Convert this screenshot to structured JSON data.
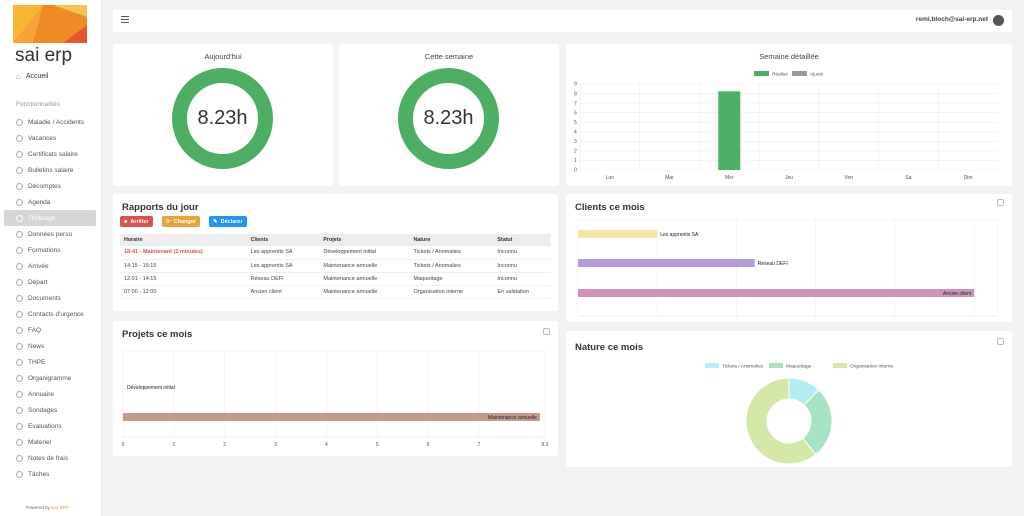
{
  "brand": {
    "name": "sai erp",
    "powered_prefix": "Powered by",
    "powered_brand": "SAI ERP",
    "logo_colors": [
      "#f7b733",
      "#f08a24",
      "#e4572e"
    ]
  },
  "sidebar": {
    "home": "Accueil",
    "section": "Fonctionnalités",
    "items": [
      {
        "label": "Maladie / Accidents",
        "icon": "clock-icon"
      },
      {
        "label": "Vacances",
        "icon": "clock-icon"
      },
      {
        "label": "Certificats salaire",
        "icon": "clock-icon"
      },
      {
        "label": "Bulletins salaire",
        "icon": "clock-icon"
      },
      {
        "label": "Décomptes",
        "icon": "clock-icon"
      },
      {
        "label": "Agenda",
        "icon": "clock-icon"
      },
      {
        "label": "Timbrage",
        "icon": "clock-icon",
        "active": true
      },
      {
        "label": "Données perso",
        "icon": "clock-icon"
      },
      {
        "label": "Formations",
        "icon": "clock-icon"
      },
      {
        "label": "Arrivée",
        "icon": "clock-icon"
      },
      {
        "label": "Départ",
        "icon": "clock-icon"
      },
      {
        "label": "Documents",
        "icon": "clock-icon"
      },
      {
        "label": "Contacts d'urgence",
        "icon": "clock-icon"
      },
      {
        "label": "FAQ",
        "icon": "clock-icon"
      },
      {
        "label": "News",
        "icon": "clock-icon"
      },
      {
        "label": "THPE",
        "icon": "clock-icon"
      },
      {
        "label": "Organigramme",
        "icon": "clock-icon"
      },
      {
        "label": "Annuaire",
        "icon": "clock-icon"
      },
      {
        "label": "Sondages",
        "icon": "clock-icon"
      },
      {
        "label": "Evaluations",
        "icon": "clock-icon"
      },
      {
        "label": "Materiel",
        "icon": "clock-icon"
      },
      {
        "label": "Notes de frais",
        "icon": "clock-icon"
      },
      {
        "label": "Tâches",
        "icon": "clock-icon"
      }
    ]
  },
  "topbar": {
    "user_email": "remi.bloch@sai-erp.net"
  },
  "today": {
    "title": "Aujourd'hui",
    "value": "8.23h"
  },
  "week": {
    "title": "Cette semaine",
    "value": "8.23h"
  },
  "colors": {
    "green": "#4caf63",
    "red": "#d9534f",
    "orange": "#e8a33b",
    "blue": "#2196f3"
  },
  "week_detail": {
    "title": "Semaine détaillée",
    "chart_data": {
      "type": "bar",
      "categories": [
        "Lun",
        "Mar",
        "Mer",
        "Jeu",
        "Ven",
        "Sa",
        "Dim"
      ],
      "series": [
        {
          "name": "Réalisé",
          "values": [
            0,
            0,
            8.23,
            0,
            0,
            0,
            0
          ],
          "color": "#4caf63"
        },
        {
          "name": "Ajusté",
          "values": [
            0,
            0,
            0,
            0,
            0,
            0,
            0
          ],
          "color": "#999999"
        }
      ],
      "yticks": [
        "0",
        "1",
        "2",
        "3",
        "4",
        "5",
        "6",
        "7",
        "8",
        "9"
      ],
      "ylim": [
        0,
        9
      ],
      "grid": true,
      "legend": "top"
    }
  },
  "reports": {
    "title": "Rapports du jour",
    "buttons": {
      "stop": "Arrêter",
      "change": "Changer",
      "declare": "Déclarer"
    },
    "headers": [
      "Horaire",
      "Clients",
      "Projets",
      "Nature",
      "Statut"
    ],
    "rows": [
      {
        "horaire": "18:41 - Maintenant (2 minutes)",
        "client": "Les apprentis SA",
        "projet": "Développement initial",
        "nature": "Tickets / Anomalies",
        "statut": "Inconnu",
        "current": true
      },
      {
        "horaire": "14:15 - 15:15",
        "client": "Les apprentis SA",
        "projet": "Maintenance annuelle",
        "nature": "Tickets / Anomalies",
        "statut": "Inconnu"
      },
      {
        "horaire": "12:01 - 14:15",
        "client": "Réseau DEFI",
        "projet": "Maintenance annuelle",
        "nature": "Maquettage",
        "statut": "Inconnu"
      },
      {
        "horaire": "07:00 - 12:00",
        "client": "Ancien client",
        "projet": "Maintenance annuelle",
        "nature": "Organisation interne",
        "statut": "En validation"
      }
    ]
  },
  "clients": {
    "title": "Clients ce mois",
    "chart_data": {
      "type": "bar",
      "orientation": "horizontal",
      "categories": [
        "Les apprentis SA",
        "Réseau DEFI",
        "Ancien client"
      ],
      "values": [
        1,
        2.23,
        5
      ],
      "colors": [
        "#f5e6a8",
        "#b39ddb",
        "#ce93b8"
      ],
      "xticks": [
        "0",
        "1",
        "2",
        "3",
        "4",
        "5",
        "5.3"
      ],
      "xlim": [
        0,
        5.3
      ],
      "grid": true
    }
  },
  "projects": {
    "title": "Projets ce mois",
    "chart_data": {
      "type": "bar",
      "orientation": "horizontal",
      "categories": [
        "Développement initial",
        "Maintenance annuelle"
      ],
      "values": [
        0.03,
        8.2
      ],
      "colors": [
        "#4caf63",
        "#c49a8c"
      ],
      "xticks": [
        "0",
        "1",
        "2",
        "3",
        "4",
        "5",
        "6",
        "7",
        "8.3"
      ],
      "xlim": [
        0,
        8.3
      ],
      "grid": true
    }
  },
  "nature": {
    "title": "Nature ce mois",
    "chart_data": {
      "type": "pie",
      "donut": true,
      "categories": [
        "Tickets / Anomalies",
        "Maquettage",
        "Organisation interne"
      ],
      "values": [
        1,
        2.23,
        5
      ],
      "colors": [
        "#b3ecf2",
        "#a6e3c4",
        "#d6e8a8"
      ],
      "legend": "top"
    }
  }
}
